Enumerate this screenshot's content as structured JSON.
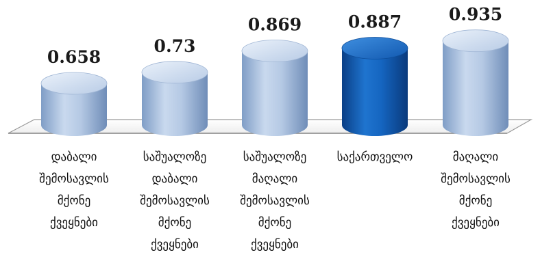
{
  "chart_data": {
    "type": "bar",
    "style": "3d-cylinder",
    "title": "",
    "xlabel": "",
    "ylabel": "",
    "categories": [
      "დაბალი\nშემოსავლის\nმქონე\nქვეყნები",
      "საშუალოზე\nდაბალი\nშემოსავლის\nმქონე\nქვეყნები",
      "საშუალოზე\nმაღალი\nშემოსავლის\nმქონე\nქვეყნები",
      "საქართველო",
      "მაღალი\nშემოსავლის\nმქონე\nქვეყნები"
    ],
    "values": [
      0.658,
      0.73,
      0.869,
      0.887,
      0.935
    ],
    "value_labels": [
      "0.658",
      "0.73",
      "0.869",
      "0.887",
      "0.935"
    ],
    "highlight_index": 3,
    "colors": {
      "default": "#b8cde6",
      "highlight": "#1565c0"
    },
    "grid": false,
    "legend": "none"
  }
}
